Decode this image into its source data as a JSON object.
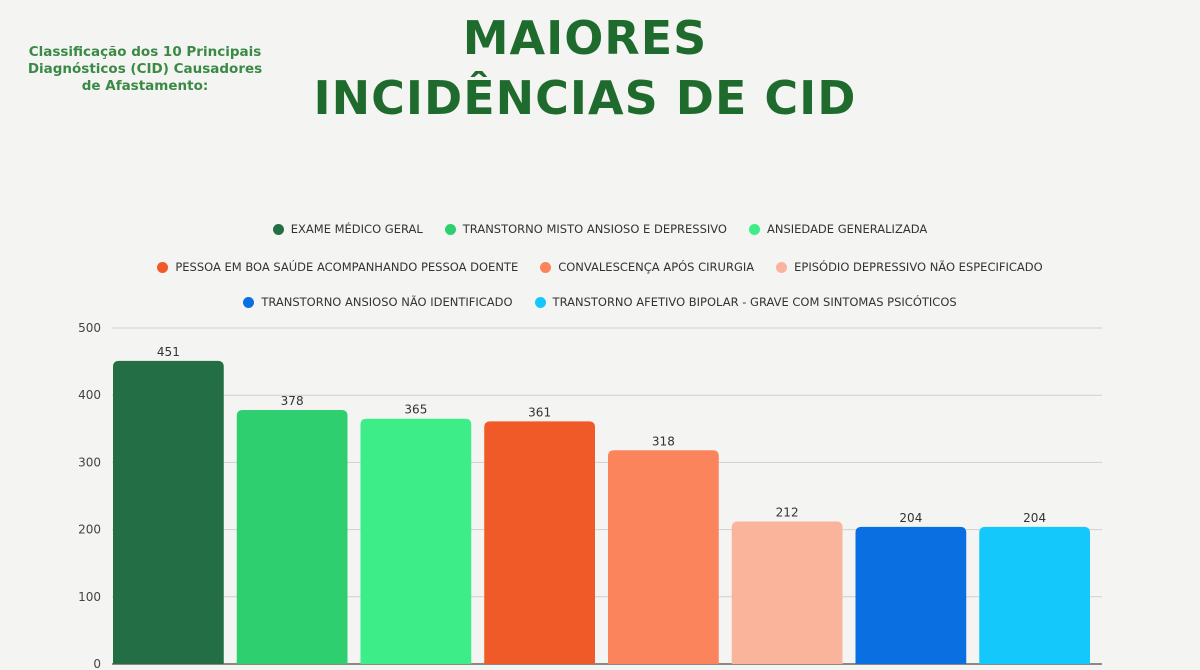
{
  "header": {
    "subtitle": "Classificação dos 10 Principais Diagnósticos (CID) Causadores de Afastamento:",
    "title": "MAIORES INCIDÊNCIAS DE CID"
  },
  "chart_data": {
    "type": "bar",
    "title": "",
    "xlabel": "",
    "ylabel": "",
    "ylim": [
      0,
      500
    ],
    "yticks": [
      "0",
      "100",
      "200",
      "300",
      "400",
      "500"
    ],
    "grid": true,
    "legend_placement": "top",
    "categories": [
      "EXAME MÉDICO GERAL",
      "TRANSTORNO MISTO ANSIOSO E DEPRESSIVO",
      "ANSIEDADE GENERALIZADA",
      "PESSOA EM BOA SAÚDE ACOMPANHANDO PESSOA DOENTE",
      "CONVALESCENÇA APÓS CIRURGIA",
      "EPISÓDIO DEPRESSIVO NÃO ESPECIFICADO",
      "TRANSTORNO ANSIOSO NÃO IDENTIFICADO",
      "TRANSTORNO AFETIVO BIPOLAR - GRAVE COM SINTOMAS PSICÓTICOS"
    ],
    "values": [
      451,
      378,
      365,
      361,
      318,
      212,
      204,
      204
    ],
    "colors": [
      "#236e44",
      "#2ecf6e",
      "#3ded87",
      "#f05a28",
      "#fb845c",
      "#fbb49c",
      "#0a6fe0",
      "#14c8fb"
    ],
    "legend_rows": [
      [
        0,
        1,
        2
      ],
      [
        3,
        4,
        5
      ],
      [
        6,
        7
      ]
    ]
  }
}
